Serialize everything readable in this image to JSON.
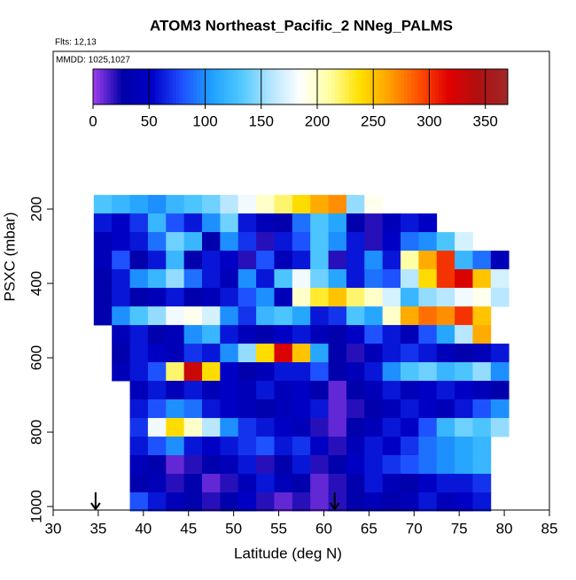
{
  "chart_data": {
    "type": "heatmap",
    "title": "ATOM3 Northeast_Pacific_2 NNeg_PALMS",
    "subtitle": "Flts: 12,13",
    "annotation": "MMDD: 1025,1027",
    "xlabel": "Latitude (deg N)",
    "ylabel": "PSXC (mbar)",
    "xlim": [
      30,
      85
    ],
    "xticks": [
      30,
      35,
      40,
      45,
      50,
      55,
      60,
      65,
      70,
      75,
      80,
      85
    ],
    "ylim": [
      1009.5,
      -224
    ],
    "yticks": [
      200,
      400,
      600,
      800,
      1000
    ],
    "clim": [
      0,
      370
    ],
    "cticks": [
      0,
      50,
      100,
      150,
      200,
      250,
      300,
      350
    ],
    "colors": [
      "#a040f0",
      "#0000a8",
      "#0000c8",
      "#1e50ff",
      "#1ea0ff",
      "#50c8ff",
      "#b4e6ff",
      "#ffffff",
      "#ffffa0",
      "#ffe100",
      "#ffa000",
      "#ff5000",
      "#e00000",
      "#b01010",
      "#a02828"
    ],
    "cell_width": 2,
    "cell_height": 50,
    "x": [
      35.5,
      37.5,
      39.5,
      41.5,
      43.5,
      45.5,
      47.5,
      49.5,
      51.5,
      53.5,
      55.5,
      57.5,
      59.5,
      61.5,
      63.5,
      65.5,
      67.5,
      69.5,
      71.5,
      73.5,
      75.5,
      77.5,
      79.5
    ],
    "y": [
      187,
      237,
      287,
      337,
      387,
      437,
      487,
      537,
      587,
      637,
      687,
      737,
      787,
      837,
      887,
      937,
      987
    ],
    "z": [
      [
        130,
        120,
        110,
        100,
        120,
        130,
        140,
        160,
        180,
        200,
        220,
        240,
        260,
        270,
        150,
        190,
        null,
        null,
        null,
        null,
        null,
        null,
        null
      ],
      [
        60,
        50,
        70,
        120,
        80,
        60,
        100,
        140,
        60,
        40,
        30,
        90,
        130,
        110,
        30,
        20,
        40,
        60,
        50,
        null,
        null,
        null,
        null
      ],
      [
        40,
        50,
        60,
        90,
        140,
        120,
        30,
        100,
        70,
        20,
        60,
        80,
        130,
        100,
        60,
        20,
        50,
        90,
        100,
        130,
        170,
        null,
        null
      ],
      [
        40,
        80,
        30,
        60,
        120,
        30,
        60,
        50,
        20,
        80,
        40,
        60,
        130,
        20,
        60,
        100,
        60,
        210,
        260,
        300,
        120,
        90,
        40
      ],
      [
        30,
        60,
        100,
        120,
        150,
        90,
        60,
        40,
        100,
        60,
        130,
        180,
        140,
        110,
        60,
        90,
        80,
        160,
        240,
        300,
        320,
        250,
        170
      ],
      [
        30,
        60,
        30,
        40,
        60,
        30,
        40,
        60,
        80,
        100,
        40,
        200,
        230,
        250,
        220,
        200,
        170,
        120,
        150,
        160,
        180,
        190,
        160
      ],
      [
        30,
        100,
        130,
        150,
        180,
        190,
        170,
        100,
        70,
        120,
        130,
        110,
        60,
        70,
        130,
        110,
        200,
        260,
        280,
        270,
        300,
        250,
        null
      ],
      [
        null,
        40,
        60,
        30,
        40,
        100,
        120,
        60,
        40,
        30,
        50,
        60,
        40,
        30,
        50,
        80,
        60,
        40,
        80,
        110,
        160,
        260,
        null
      ],
      [
        null,
        30,
        60,
        50,
        40,
        70,
        60,
        100,
        150,
        240,
        320,
        250,
        110,
        30,
        20,
        40,
        60,
        70,
        60,
        40,
        30,
        40,
        60
      ],
      [
        null,
        40,
        60,
        80,
        220,
        330,
        240,
        50,
        30,
        40,
        60,
        60,
        80,
        30,
        40,
        60,
        100,
        130,
        140,
        120,
        130,
        150,
        100
      ],
      [
        null,
        null,
        40,
        60,
        40,
        60,
        40,
        50,
        40,
        60,
        40,
        50,
        30,
        10,
        30,
        40,
        60,
        40,
        50,
        60,
        50,
        40,
        30
      ],
      [
        null,
        null,
        60,
        80,
        100,
        90,
        60,
        50,
        40,
        30,
        40,
        50,
        60,
        10,
        20,
        30,
        40,
        60,
        50,
        40,
        60,
        80,
        100
      ],
      [
        null,
        null,
        70,
        180,
        240,
        200,
        160,
        100,
        70,
        60,
        50,
        40,
        20,
        10,
        30,
        40,
        60,
        50,
        80,
        120,
        140,
        130,
        150
      ],
      [
        null,
        null,
        60,
        80,
        100,
        60,
        50,
        60,
        70,
        80,
        60,
        70,
        50,
        20,
        40,
        60,
        50,
        70,
        90,
        100,
        110,
        120,
        null
      ],
      [
        null,
        null,
        40,
        30,
        10,
        20,
        30,
        40,
        60,
        20,
        30,
        60,
        20,
        30,
        50,
        60,
        70,
        80,
        90,
        100,
        110,
        120,
        null
      ],
      [
        null,
        null,
        30,
        40,
        20,
        30,
        10,
        20,
        40,
        60,
        40,
        30,
        10,
        20,
        30,
        60,
        40,
        30,
        50,
        60,
        60,
        70,
        null
      ],
      [
        null,
        null,
        80,
        60,
        40,
        30,
        20,
        30,
        50,
        20,
        10,
        20,
        10,
        20,
        30,
        40,
        30,
        40,
        60,
        40,
        50,
        60,
        null
      ]
    ],
    "arrows": [
      34.7,
      61.2
    ]
  }
}
